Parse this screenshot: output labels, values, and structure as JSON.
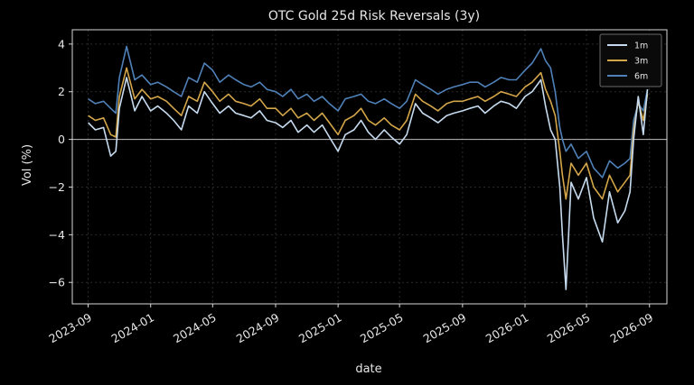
{
  "chart_data": {
    "type": "line",
    "title": "OTC Gold 25d Risk Reversals (3y)",
    "xlabel": "date",
    "ylabel": "Vol (%)",
    "xlim": [
      "2023-08-01",
      "2026-10-05"
    ],
    "ylim": [
      -6.9,
      4.6
    ],
    "yticks": [
      4,
      2,
      0,
      -2,
      -4,
      -6
    ],
    "ytick_labels": [
      "4",
      "2",
      "0",
      "−2",
      "−4",
      "−6"
    ],
    "xticks": [
      "2023-09",
      "2024-01",
      "2024-05",
      "2024-09",
      "2025-01",
      "2025-05",
      "2025-09",
      "2026-01",
      "2026-05",
      "2026-09"
    ],
    "zero_line": true,
    "grid": true,
    "legend": "top-right",
    "background": "#000000",
    "series": [
      {
        "name": "1m",
        "color": "#c6dbef",
        "x": [
          "2023-09-01",
          "2023-09-15",
          "2023-10-01",
          "2023-10-15",
          "2023-10-25",
          "2023-11-01",
          "2023-11-15",
          "2023-12-01",
          "2023-12-15",
          "2024-01-01",
          "2024-01-15",
          "2024-02-01",
          "2024-02-15",
          "2024-03-01",
          "2024-03-15",
          "2024-04-01",
          "2024-04-15",
          "2024-05-01",
          "2024-05-15",
          "2024-06-01",
          "2024-06-15",
          "2024-07-01",
          "2024-07-15",
          "2024-08-01",
          "2024-08-15",
          "2024-09-01",
          "2024-09-15",
          "2024-10-01",
          "2024-10-15",
          "2024-11-01",
          "2024-11-15",
          "2024-12-01",
          "2024-12-15",
          "2025-01-01",
          "2025-01-15",
          "2025-02-01",
          "2025-02-15",
          "2025-03-01",
          "2025-03-15",
          "2025-04-01",
          "2025-04-15",
          "2025-05-01",
          "2025-05-15",
          "2025-06-01",
          "2025-06-15",
          "2025-07-01",
          "2025-07-15",
          "2025-08-01",
          "2025-08-15",
          "2025-09-01",
          "2025-09-15",
          "2025-10-01",
          "2025-10-15",
          "2025-11-01",
          "2025-11-15",
          "2025-12-01",
          "2025-12-15",
          "2026-01-01",
          "2026-01-15",
          "2026-02-01",
          "2026-02-10",
          "2026-02-20",
          "2026-03-01",
          "2026-03-10",
          "2026-03-15",
          "2026-03-22",
          "2026-04-01",
          "2026-04-15",
          "2026-05-01",
          "2026-05-15",
          "2026-06-01",
          "2026-06-15",
          "2026-07-01",
          "2026-07-15",
          "2026-07-25",
          "2026-08-01",
          "2026-08-10",
          "2026-08-20",
          "2026-08-28"
        ],
        "y": [
          0.7,
          0.4,
          0.5,
          -0.7,
          -0.5,
          1.3,
          2.6,
          1.2,
          1.8,
          1.2,
          1.4,
          1.1,
          0.8,
          0.4,
          1.4,
          1.1,
          2.0,
          1.5,
          1.1,
          1.4,
          1.1,
          1.0,
          0.9,
          1.2,
          0.8,
          0.7,
          0.5,
          0.8,
          0.3,
          0.6,
          0.3,
          0.6,
          0.1,
          -0.5,
          0.2,
          0.4,
          0.8,
          0.3,
          0.0,
          0.4,
          0.1,
          -0.2,
          0.2,
          1.5,
          1.1,
          0.9,
          0.7,
          1.0,
          1.1,
          1.2,
          1.3,
          1.4,
          1.1,
          1.4,
          1.6,
          1.5,
          1.3,
          1.8,
          2.0,
          2.5,
          1.4,
          0.4,
          0.0,
          -2.0,
          -4.0,
          -6.3,
          -1.8,
          -2.5,
          -1.6,
          -3.3,
          -4.3,
          -2.2,
          -3.5,
          -3.0,
          -2.2,
          0.0,
          1.8,
          0.2,
          2.1
        ]
      },
      {
        "name": "3m",
        "color": "#d4a64a",
        "x": [
          "2023-09-01",
          "2023-09-15",
          "2023-10-01",
          "2023-10-15",
          "2023-10-25",
          "2023-11-01",
          "2023-11-15",
          "2023-12-01",
          "2023-12-15",
          "2024-01-01",
          "2024-01-15",
          "2024-02-01",
          "2024-02-15",
          "2024-03-01",
          "2024-03-15",
          "2024-04-01",
          "2024-04-15",
          "2024-05-01",
          "2024-05-15",
          "2024-06-01",
          "2024-06-15",
          "2024-07-01",
          "2024-07-15",
          "2024-08-01",
          "2024-08-15",
          "2024-09-01",
          "2024-09-15",
          "2024-10-01",
          "2024-10-15",
          "2024-11-01",
          "2024-11-15",
          "2024-12-01",
          "2024-12-15",
          "2025-01-01",
          "2025-01-15",
          "2025-02-01",
          "2025-02-15",
          "2025-03-01",
          "2025-03-15",
          "2025-04-01",
          "2025-04-15",
          "2025-05-01",
          "2025-05-15",
          "2025-06-01",
          "2025-06-15",
          "2025-07-01",
          "2025-07-15",
          "2025-08-01",
          "2025-08-15",
          "2025-09-01",
          "2025-09-15",
          "2025-10-01",
          "2025-10-15",
          "2025-11-01",
          "2025-11-15",
          "2025-12-01",
          "2025-12-15",
          "2026-01-01",
          "2026-01-15",
          "2026-02-01",
          "2026-02-10",
          "2026-02-20",
          "2026-03-01",
          "2026-03-10",
          "2026-03-15",
          "2026-03-22",
          "2026-04-01",
          "2026-04-15",
          "2026-05-01",
          "2026-05-15",
          "2026-06-01",
          "2026-06-15",
          "2026-07-01",
          "2026-07-15",
          "2026-07-25",
          "2026-08-01",
          "2026-08-10",
          "2026-08-20",
          "2026-08-28"
        ],
        "y": [
          1.0,
          0.8,
          0.9,
          0.2,
          0.1,
          1.8,
          3.0,
          1.7,
          2.1,
          1.7,
          1.8,
          1.6,
          1.3,
          1.0,
          1.8,
          1.6,
          2.4,
          2.0,
          1.6,
          1.9,
          1.6,
          1.5,
          1.4,
          1.7,
          1.3,
          1.3,
          1.0,
          1.3,
          0.9,
          1.1,
          0.8,
          1.1,
          0.7,
          0.2,
          0.8,
          1.0,
          1.3,
          0.8,
          0.6,
          0.9,
          0.6,
          0.4,
          0.8,
          1.9,
          1.6,
          1.4,
          1.2,
          1.5,
          1.6,
          1.6,
          1.7,
          1.8,
          1.6,
          1.8,
          2.0,
          1.9,
          1.8,
          2.2,
          2.4,
          2.8,
          2.1,
          1.6,
          1.0,
          -0.5,
          -1.5,
          -2.5,
          -1.0,
          -1.5,
          -1.0,
          -2.0,
          -2.5,
          -1.5,
          -2.2,
          -1.8,
          -1.5,
          0.4,
          1.6,
          0.8,
          1.9
        ]
      },
      {
        "name": "6m",
        "color": "#4f81b8",
        "x": [
          "2023-09-01",
          "2023-09-15",
          "2023-10-01",
          "2023-10-15",
          "2023-10-25",
          "2023-11-01",
          "2023-11-15",
          "2023-12-01",
          "2023-12-15",
          "2024-01-01",
          "2024-01-15",
          "2024-02-01",
          "2024-02-15",
          "2024-03-01",
          "2024-03-15",
          "2024-04-01",
          "2024-04-15",
          "2024-05-01",
          "2024-05-15",
          "2024-06-01",
          "2024-06-15",
          "2024-07-01",
          "2024-07-15",
          "2024-08-01",
          "2024-08-15",
          "2024-09-01",
          "2024-09-15",
          "2024-10-01",
          "2024-10-15",
          "2024-11-01",
          "2024-11-15",
          "2024-12-01",
          "2024-12-15",
          "2025-01-01",
          "2025-01-15",
          "2025-02-01",
          "2025-02-15",
          "2025-03-01",
          "2025-03-15",
          "2025-04-01",
          "2025-04-15",
          "2025-05-01",
          "2025-05-15",
          "2025-06-01",
          "2025-06-15",
          "2025-07-01",
          "2025-07-15",
          "2025-08-01",
          "2025-08-15",
          "2025-09-01",
          "2025-09-15",
          "2025-10-01",
          "2025-10-15",
          "2025-11-01",
          "2025-11-15",
          "2025-12-01",
          "2025-12-15",
          "2026-01-01",
          "2026-01-15",
          "2026-02-01",
          "2026-02-10",
          "2026-02-20",
          "2026-03-01",
          "2026-03-10",
          "2026-03-15",
          "2026-03-22",
          "2026-04-01",
          "2026-04-15",
          "2026-05-01",
          "2026-05-15",
          "2026-06-01",
          "2026-06-15",
          "2026-07-01",
          "2026-07-15",
          "2026-07-25",
          "2026-08-01",
          "2026-08-10",
          "2026-08-20",
          "2026-08-28"
        ],
        "y": [
          1.7,
          1.5,
          1.6,
          1.3,
          1.1,
          2.6,
          3.9,
          2.5,
          2.7,
          2.3,
          2.4,
          2.2,
          2.0,
          1.8,
          2.6,
          2.4,
          3.2,
          2.9,
          2.4,
          2.7,
          2.5,
          2.3,
          2.2,
          2.4,
          2.1,
          2.0,
          1.8,
          2.1,
          1.7,
          1.9,
          1.6,
          1.8,
          1.5,
          1.2,
          1.7,
          1.8,
          1.9,
          1.6,
          1.5,
          1.7,
          1.5,
          1.3,
          1.6,
          2.5,
          2.3,
          2.1,
          1.9,
          2.1,
          2.2,
          2.3,
          2.4,
          2.4,
          2.2,
          2.4,
          2.6,
          2.5,
          2.5,
          2.9,
          3.2,
          3.8,
          3.3,
          3.0,
          2.0,
          0.5,
          0.0,
          -0.5,
          -0.2,
          -0.8,
          -0.5,
          -1.2,
          -1.6,
          -0.9,
          -1.2,
          -1.0,
          -0.8,
          0.8,
          1.5,
          1.2,
          2.1
        ]
      }
    ]
  }
}
